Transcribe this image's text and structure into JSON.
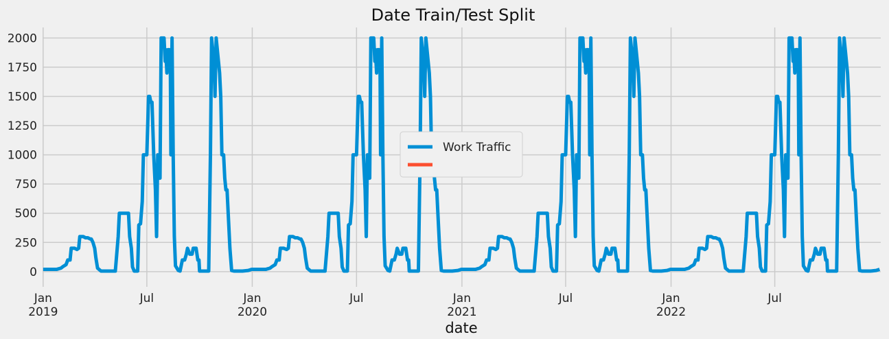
{
  "chart_data": {
    "type": "line",
    "title": "Date Train/Test Split",
    "xlabel": "date",
    "ylabel": "",
    "ylim": [
      -130,
      2090
    ],
    "xlim": [
      "2018-12-31",
      "2023-01-02"
    ],
    "yticks": [
      0,
      250,
      500,
      750,
      1000,
      1250,
      1500,
      1750,
      2000
    ],
    "xticks": [
      {
        "date": "2019-01-01",
        "label": "Jan",
        "sublabel": "2019"
      },
      {
        "date": "2019-07-01",
        "label": "Jul",
        "sublabel": ""
      },
      {
        "date": "2020-01-01",
        "label": "Jan",
        "sublabel": "2020"
      },
      {
        "date": "2020-07-01",
        "label": "Jul",
        "sublabel": ""
      },
      {
        "date": "2021-01-01",
        "label": "Jan",
        "sublabel": "2021"
      },
      {
        "date": "2021-07-01",
        "label": "Jul",
        "sublabel": ""
      },
      {
        "date": "2022-01-01",
        "label": "Jan",
        "sublabel": "2022"
      },
      {
        "date": "2022-07-01",
        "label": "Jul",
        "sublabel": ""
      }
    ],
    "grid": true,
    "legend": {
      "placement": "center"
    },
    "series": [
      {
        "name": "Work Traffic",
        "color": "#008fd5",
        "repeat_years": [
          2019,
          2020,
          2021,
          2022
        ],
        "yearly_points": [
          [
            "01-01",
            20
          ],
          [
            "01-07",
            20
          ],
          [
            "01-15",
            20
          ],
          [
            "01-25",
            20
          ],
          [
            "02-01",
            30
          ],
          [
            "02-05",
            45
          ],
          [
            "02-10",
            60
          ],
          [
            "02-13",
            100
          ],
          [
            "02-17",
            100
          ],
          [
            "02-19",
            200
          ],
          [
            "02-25",
            200
          ],
          [
            "03-01",
            190
          ],
          [
            "03-04",
            200
          ],
          [
            "03-06",
            300
          ],
          [
            "03-12",
            300
          ],
          [
            "03-16",
            290
          ],
          [
            "03-20",
            290
          ],
          [
            "03-24",
            280
          ],
          [
            "03-26",
            280
          ],
          [
            "03-29",
            250
          ],
          [
            "04-01",
            200
          ],
          [
            "04-03",
            120
          ],
          [
            "04-06",
            30
          ],
          [
            "04-12",
            5
          ],
          [
            "04-25",
            5
          ],
          [
            "05-07",
            5
          ],
          [
            "05-12",
            300
          ],
          [
            "05-14",
            500
          ],
          [
            "05-20",
            500
          ],
          [
            "05-30",
            500
          ],
          [
            "06-01",
            300
          ],
          [
            "06-04",
            200
          ],
          [
            "06-06",
            40
          ],
          [
            "06-09",
            5
          ],
          [
            "06-15",
            5
          ],
          [
            "06-17",
            400
          ],
          [
            "06-20",
            410
          ],
          [
            "06-23",
            600
          ],
          [
            "06-25",
            1000
          ],
          [
            "06-28",
            1000
          ],
          [
            "07-01",
            1000
          ],
          [
            "07-04",
            1500
          ],
          [
            "07-06",
            1500
          ],
          [
            "07-08",
            1450
          ],
          [
            "07-10",
            1450
          ],
          [
            "07-13",
            1000
          ],
          [
            "07-16",
            700
          ],
          [
            "07-18",
            300
          ],
          [
            "07-20",
            1000
          ],
          [
            "07-22",
            800
          ],
          [
            "07-24",
            800
          ],
          [
            "07-26",
            2000
          ],
          [
            "07-28",
            2000
          ],
          [
            "07-31",
            2000
          ],
          [
            "08-02",
            1800
          ],
          [
            "08-03",
            1900
          ],
          [
            "08-05",
            1700
          ],
          [
            "08-07",
            1900
          ],
          [
            "08-09",
            1900
          ],
          [
            "08-11",
            1800
          ],
          [
            "08-12",
            1000
          ],
          [
            "08-14",
            2000
          ],
          [
            "08-16",
            1000
          ],
          [
            "08-18",
            300
          ],
          [
            "08-20",
            50
          ],
          [
            "08-25",
            10
          ],
          [
            "08-28",
            5
          ],
          [
            "09-01",
            100
          ],
          [
            "09-05",
            100
          ],
          [
            "09-08",
            150
          ],
          [
            "09-10",
            200
          ],
          [
            "09-14",
            150
          ],
          [
            "09-18",
            150
          ],
          [
            "09-20",
            200
          ],
          [
            "09-25",
            200
          ],
          [
            "09-28",
            100
          ],
          [
            "09-30",
            100
          ],
          [
            "10-01",
            5
          ],
          [
            "10-10",
            5
          ],
          [
            "10-17",
            5
          ],
          [
            "10-20",
            1000
          ],
          [
            "10-22",
            2000
          ],
          [
            "10-24",
            1900
          ],
          [
            "10-26",
            1850
          ],
          [
            "10-28",
            1500
          ],
          [
            "10-30",
            2000
          ],
          [
            "11-01",
            1900
          ],
          [
            "11-03",
            1800
          ],
          [
            "11-05",
            1700
          ],
          [
            "11-07",
            1500
          ],
          [
            "11-09",
            1000
          ],
          [
            "11-12",
            1000
          ],
          [
            "11-14",
            800
          ],
          [
            "11-16",
            700
          ],
          [
            "11-18",
            700
          ],
          [
            "11-20",
            500
          ],
          [
            "11-23",
            200
          ],
          [
            "11-26",
            10
          ],
          [
            "11-30",
            5
          ],
          [
            "12-05",
            5
          ],
          [
            "12-15",
            5
          ],
          [
            "12-25",
            10
          ],
          [
            "12-31",
            20
          ]
        ]
      },
      {
        "name": "",
        "color": "#fc4f30",
        "values": []
      }
    ]
  }
}
